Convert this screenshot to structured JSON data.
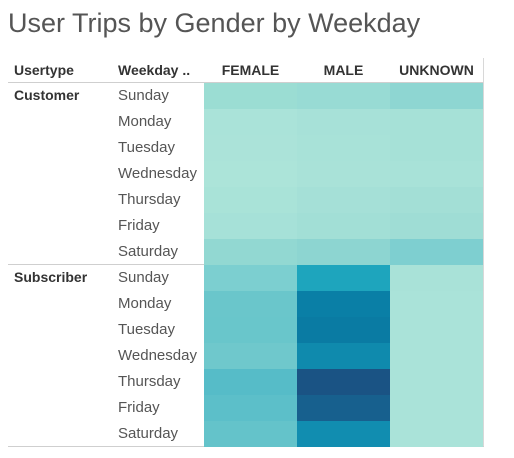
{
  "chart_data": {
    "type": "heatmap",
    "title": "User Trips by Gender by Weekday",
    "row_headers": [
      "Usertype",
      "Weekday .."
    ],
    "columns": [
      "FEMALE",
      "MALE",
      "UNKNOWN"
    ],
    "groups": [
      {
        "usertype": "Customer",
        "rows": [
          {
            "weekday": "Sunday",
            "colors": [
              "#9bddd3",
              "#98dbd4",
              "#8ed6d2"
            ]
          },
          {
            "weekday": "Monday",
            "colors": [
              "#aae3d9",
              "#a7e1d8",
              "#a6e1d7"
            ]
          },
          {
            "weekday": "Tuesday",
            "colors": [
              "#abe3d9",
              "#a8e2d8",
              "#a6e1d7"
            ]
          },
          {
            "weekday": "Wednesday",
            "colors": [
              "#ace4d9",
              "#a9e2d8",
              "#a8e2d8"
            ]
          },
          {
            "weekday": "Thursday",
            "colors": [
              "#a9e3d8",
              "#a5e0d7",
              "#a3dfd6"
            ]
          },
          {
            "weekday": "Friday",
            "colors": [
              "#a6e1d8",
              "#a2dfd6",
              "#9fddd5"
            ]
          },
          {
            "weekday": "Saturday",
            "colors": [
              "#92d8d2",
              "#8dd5d1",
              "#7ecfd0"
            ]
          }
        ]
      },
      {
        "usertype": "Subscriber",
        "rows": [
          {
            "weekday": "Sunday",
            "colors": [
              "#7ccfd0",
              "#1ea5bd",
              "#a9e2d8"
            ]
          },
          {
            "weekday": "Monday",
            "colors": [
              "#6ac6cb",
              "#0a7fa6",
              "#aae3d9"
            ]
          },
          {
            "weekday": "Tuesday",
            "colors": [
              "#69c6cb",
              "#0a7ba3",
              "#aae3d9"
            ]
          },
          {
            "weekday": "Wednesday",
            "colors": [
              "#6fc8cc",
              "#0f8aad",
              "#aae3d9"
            ]
          },
          {
            "weekday": "Thursday",
            "colors": [
              "#56bcc8",
              "#1a5384",
              "#aae3d9"
            ]
          },
          {
            "weekday": "Friday",
            "colors": [
              "#5cbfc9",
              "#17608e",
              "#aae3d9"
            ]
          },
          {
            "weekday": "Saturday",
            "colors": [
              "#64c3ca",
              "#118db0",
              "#aae3d9"
            ]
          }
        ]
      }
    ]
  }
}
